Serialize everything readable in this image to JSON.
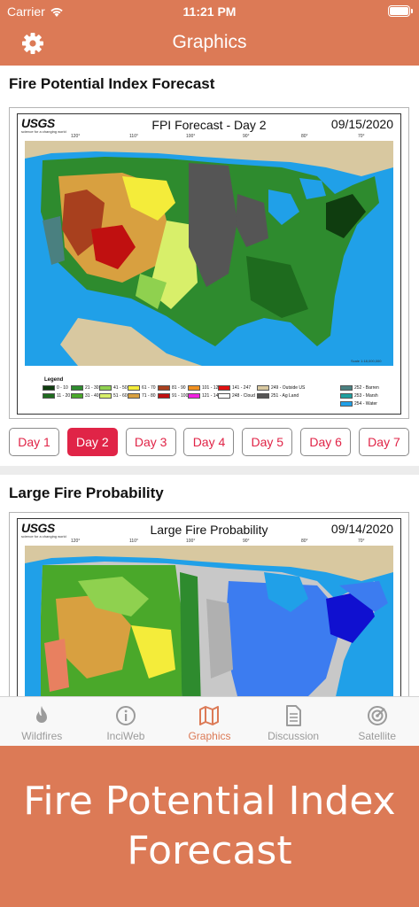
{
  "status": {
    "carrier": "Carrier",
    "time": "11:21 PM"
  },
  "nav": {
    "title": "Graphics"
  },
  "fpi": {
    "section_title": "Fire Potential Index Forecast",
    "map_title": "FPI Forecast - Day 2",
    "map_date": "09/15/2020",
    "logo_text": "USGS",
    "logo_tagline": "science for a changing world",
    "lon_labels": [
      "120°",
      "110°",
      "100°",
      "90°",
      "80°",
      "70°"
    ],
    "scale_text": "Scale 1:18,000,000",
    "legend_title": "Legend",
    "legend": [
      {
        "label": "0 - 10",
        "color": "#0f3d0f"
      },
      {
        "label": "11 - 20",
        "color": "#1e6b1e"
      },
      {
        "label": "21 - 30",
        "color": "#2e8b2e"
      },
      {
        "label": "31 - 40",
        "color": "#4aa82a"
      },
      {
        "label": "41 - 50",
        "color": "#8fd14f"
      },
      {
        "label": "51 - 60",
        "color": "#d8ef6a"
      },
      {
        "label": "61 - 70",
        "color": "#f4ec3a"
      },
      {
        "label": "71 - 80",
        "color": "#d8a040"
      },
      {
        "label": "81 - 90",
        "color": "#a8401e"
      },
      {
        "label": "91 - 100",
        "color": "#c01010"
      },
      {
        "label": "101 - 120",
        "color": "#f09020"
      },
      {
        "label": "121 - 140",
        "color": "#f020e0"
      },
      {
        "label": "141 - 247",
        "color": "#e01010"
      },
      {
        "label": "248 - Cloud",
        "color": "#ffffff"
      },
      {
        "label": "249 - Outside US",
        "color": "#d8c8a0"
      },
      {
        "label": "251 - Ag Land",
        "color": "#555555"
      },
      {
        "label": "252 - Barren",
        "color": "#4a8080"
      },
      {
        "label": "253 - Marsh",
        "color": "#20a0a0"
      },
      {
        "label": "254 - Water",
        "color": "#20a0e8"
      }
    ],
    "days": [
      "Day 1",
      "Day 2",
      "Day 3",
      "Day 4",
      "Day 5",
      "Day 6",
      "Day 7"
    ],
    "selected_day": "Day 2"
  },
  "lfp": {
    "section_title": "Large Fire Probability",
    "map_title": "Large Fire Probability",
    "map_date": "09/14/2020",
    "logo_text": "USGS",
    "logo_tagline": "science for a changing world",
    "lon_labels": [
      "120°",
      "110°",
      "100°",
      "90°",
      "80°",
      "70°"
    ]
  },
  "tabs": [
    {
      "label": "Wildfires",
      "icon": "flame-icon",
      "active": false
    },
    {
      "label": "InciWeb",
      "icon": "info-circle-icon",
      "active": false
    },
    {
      "label": "Graphics",
      "icon": "map-icon",
      "active": true
    },
    {
      "label": "Discussion",
      "icon": "document-icon",
      "active": false
    },
    {
      "label": "Satellite",
      "icon": "satellite-dish-icon",
      "active": false
    }
  ],
  "caption": "Fire Potential Index Forecast",
  "colors": {
    "accent": "#dc7a56",
    "day_button": "#e02447",
    "water": "#20a0e8",
    "outside_land": "#d8c8a0"
  }
}
